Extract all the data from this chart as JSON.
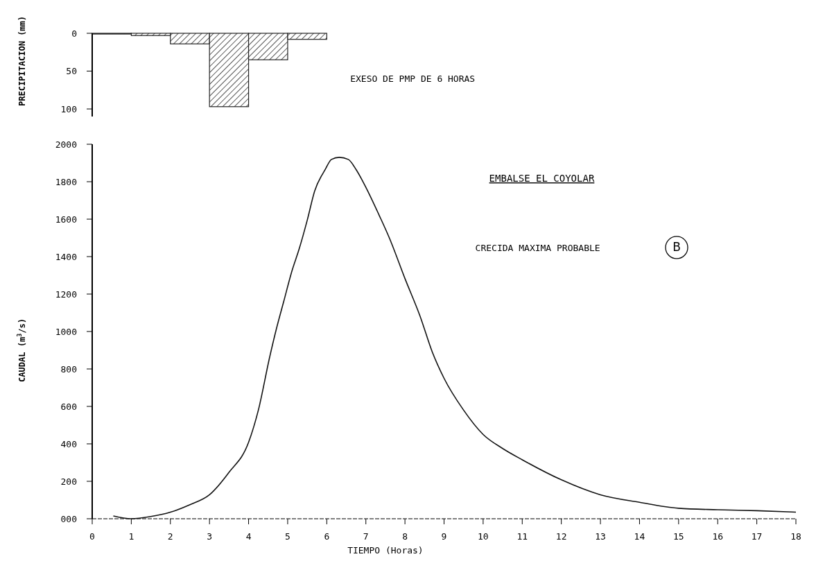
{
  "chart_data": [
    {
      "type": "histogram",
      "ylabel": "PRECIPITACION (mm)",
      "bins": [
        0,
        1,
        2,
        3,
        4,
        5,
        6
      ],
      "values": [
        1,
        3,
        14,
        97,
        35,
        8
      ],
      "color": "#222222",
      "xlim": [
        0,
        18
      ],
      "ylim": [
        110,
        0
      ],
      "yticks": [
        0,
        50,
        100
      ],
      "tick_labels": "y",
      "grid": false,
      "annotations": [
        "EXESO DE PMP DE 6 HORAS"
      ]
    },
    {
      "type": "line",
      "title": "EMBALSE EL COYOLAR",
      "xlabel": "TIEMPO (Horas)",
      "ylabel": "CAUDAL (m$^{3}$/s)",
      "color": "#111111",
      "x": [
        0.54,
        1,
        1.5,
        2,
        2.5,
        3,
        3.5,
        4,
        4.25,
        4.54,
        4.71,
        4.9,
        5.1,
        5.3,
        5.5,
        5.69,
        5.96,
        6.12,
        6.32,
        6.55,
        6.75,
        7,
        7.34,
        7.6,
        8,
        8.39,
        8.7,
        9,
        9.5,
        10,
        10.5,
        11,
        12,
        13,
        14,
        15,
        16,
        17,
        18
      ],
      "values": [
        15,
        0,
        12,
        35,
        75,
        128,
        248,
        408,
        580,
        864,
        1013,
        1161,
        1317,
        1445,
        1594,
        1750,
        1865,
        1919,
        1930,
        1919,
        1865,
        1770,
        1621,
        1500,
        1283,
        1080,
        890,
        750,
        580,
        450,
        375,
        315,
        208,
        128,
        88,
        56,
        48,
        43,
        35
      ],
      "xlim": [
        0,
        18
      ],
      "xticks": [
        0,
        1,
        2,
        3,
        4,
        5,
        6,
        7,
        8,
        9,
        10,
        11,
        12,
        13,
        14,
        15,
        16,
        17,
        18
      ],
      "ylim": [
        0,
        2000
      ],
      "yticks": [
        {
          "value": 0,
          "label": "000"
        },
        200,
        400,
        600,
        800,
        1000,
        1200,
        1400,
        1600,
        1800,
        2000
      ],
      "grid": false,
      "line_style": "solid",
      "marker": "none",
      "annotations": [
        "CRECIDA MAXIMA PROBABLE",
        "B"
      ]
    }
  ]
}
